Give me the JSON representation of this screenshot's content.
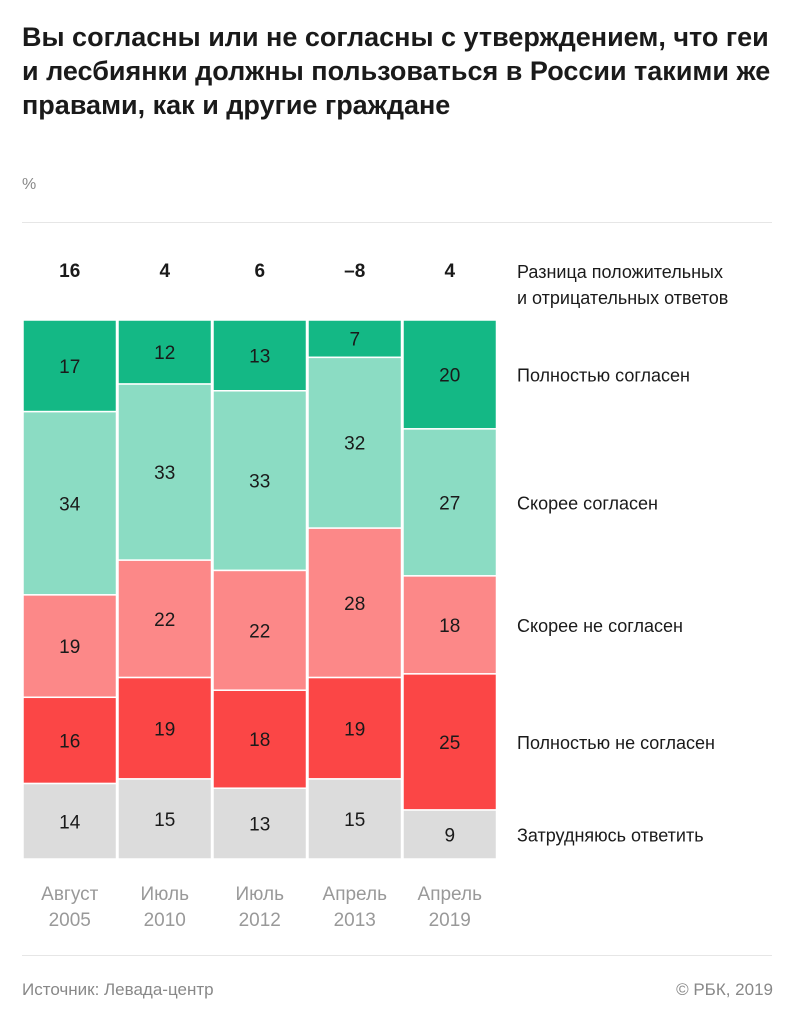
{
  "title": "Вы согласны или не согласны с утверждением, что геи и лесбиянки должны пользоваться в России такими же правами, как и другие граждане",
  "unit": "%",
  "source": "Источник: Левада-центр",
  "copyright": "© РБК, 2019",
  "chart_data": {
    "type": "bar",
    "stacked": true,
    "title": "Вы согласны или не согласны с утверждением, что геи и лесбиянки должны пользоваться в России такими же правами, как и другие граждане",
    "ylabel": "%",
    "categories": [
      [
        "Август",
        "2005"
      ],
      [
        "Июль",
        "2010"
      ],
      [
        "Июль",
        "2012"
      ],
      [
        "Апрель",
        "2013"
      ],
      [
        "Апрель",
        "2019"
      ]
    ],
    "difference_label": [
      "Разница положительных",
      "и отрицательных ответов"
    ],
    "difference": [
      "16",
      "4",
      "6",
      "–8",
      "4"
    ],
    "series": [
      {
        "name": "Полностью согласен",
        "color": "#14b885",
        "values": [
          17,
          12,
          13,
          7,
          20
        ]
      },
      {
        "name": "Скорее согласен",
        "color": "#8bdcc3",
        "values": [
          34,
          33,
          33,
          32,
          27
        ]
      },
      {
        "name": "Скорее не согласен",
        "color": "#fc8888",
        "values": [
          19,
          22,
          22,
          28,
          18
        ]
      },
      {
        "name": "Полностью не согласен",
        "color": "#fb4646",
        "values": [
          16,
          19,
          18,
          19,
          25
        ]
      },
      {
        "name": "Затрудняюсь ответить",
        "color": "#dcdcdc",
        "values": [
          14,
          15,
          13,
          15,
          9
        ]
      }
    ]
  }
}
